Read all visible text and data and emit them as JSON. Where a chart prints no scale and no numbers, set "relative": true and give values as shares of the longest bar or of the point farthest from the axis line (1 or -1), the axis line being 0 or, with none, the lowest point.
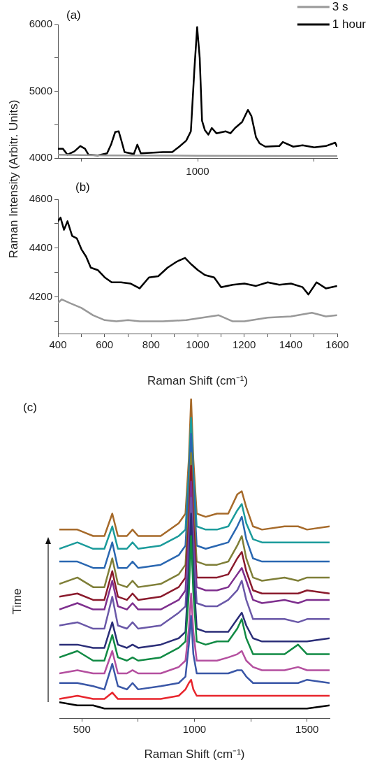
{
  "chart_data": [
    {
      "type": "line",
      "title": "(a)",
      "ylabel": "Raman Intensity (Arbitr. Units)",
      "annotations": [
        "1000"
      ],
      "tick_labels": "y",
      "xlim": [
        400,
        1600
      ],
      "xticks": [
        {
          "value": 500,
          "label": null
        },
        {
          "value": 1000,
          "label": null
        },
        {
          "value": 1500,
          "label": null
        }
      ],
      "ylim": [
        4000,
        6000
      ],
      "yticks": [
        4000,
        {
          "value": 4500,
          "label": null
        },
        5000,
        {
          "value": 5500,
          "label": null
        },
        6000
      ],
      "legend": "top right",
      "marker": "none",
      "series": [
        {
          "name": "3 s",
          "color": "#999999",
          "x": [
            400,
            600,
            1000,
            1600
          ],
          "values": [
            4050,
            4040,
            4035,
            4030
          ]
        },
        {
          "name": "1 hour",
          "color": "#000000",
          "x": [
            400,
            421,
            441,
            471,
            496,
            516,
            531,
            571,
            611,
            629,
            646,
            661,
            671,
            686,
            726,
            741,
            756,
            851,
            891,
            921,
            951,
            971,
            986,
            998,
            1009,
            1019,
            1031,
            1046,
            1061,
            1081,
            1121,
            1141,
            1161,
            1191,
            1216,
            1231,
            1251,
            1266,
            1291,
            1351,
            1366,
            1411,
            1451,
            1501,
            1551,
            1591,
            1599
          ],
          "values": [
            4140,
            4140,
            4050,
            4100,
            4180,
            4140,
            4050,
            4040,
            4070,
            4210,
            4390,
            4400,
            4280,
            4090,
            4060,
            4200,
            4070,
            4090,
            4090,
            4170,
            4260,
            4400,
            5320,
            5960,
            5500,
            4560,
            4420,
            4350,
            4450,
            4370,
            4400,
            4370,
            4450,
            4540,
            4720,
            4630,
            4310,
            4220,
            4170,
            4180,
            4240,
            4170,
            4190,
            4160,
            4180,
            4230,
            4170
          ]
        }
      ]
    },
    {
      "type": "line",
      "title": "(b)",
      "xlabel": "Raman Shift (cm⁻¹)",
      "xlim": [
        400,
        1600
      ],
      "xticks": [
        400,
        {
          "value": 500,
          "label": null
        },
        600,
        {
          "value": 700,
          "label": null
        },
        800,
        {
          "value": 900,
          "label": null
        },
        1000,
        {
          "value": 1100,
          "label": null
        },
        1200,
        {
          "value": 1300,
          "label": null
        },
        1400,
        {
          "value": 1500,
          "label": null
        },
        1600
      ],
      "ylim": [
        4050,
        4600
      ],
      "yticks": [
        {
          "value": 4100,
          "label": null
        },
        4200,
        {
          "value": 4300,
          "label": null
        },
        4400,
        {
          "value": 4500,
          "label": null
        },
        4600
      ],
      "marker": "none",
      "series": [
        {
          "color": "#999999",
          "x": [
            400,
            416,
            451,
            501,
            551,
            601,
            651,
            701,
            751,
            801,
            851,
            951,
            1091,
            1151,
            1201,
            1301,
            1401,
            1491,
            1551,
            1599
          ],
          "values": [
            4175,
            4190,
            4175,
            4155,
            4125,
            4105,
            4100,
            4105,
            4100,
            4100,
            4100,
            4105,
            4125,
            4100,
            4100,
            4115,
            4120,
            4135,
            4120,
            4125
          ]
        },
        {
          "color": "#000000",
          "x": [
            400,
            411,
            426,
            441,
            461,
            481,
            501,
            521,
            541,
            571,
            601,
            631,
            671,
            711,
            751,
            791,
            831,
            871,
            911,
            946,
            971,
            1001,
            1031,
            1071,
            1101,
            1151,
            1201,
            1251,
            1301,
            1351,
            1401,
            1451,
            1476,
            1511,
            1551,
            1599
          ],
          "values": [
            4510,
            4525,
            4475,
            4510,
            4450,
            4440,
            4395,
            4365,
            4320,
            4310,
            4280,
            4260,
            4260,
            4255,
            4235,
            4280,
            4285,
            4320,
            4345,
            4360,
            4335,
            4310,
            4290,
            4280,
            4240,
            4250,
            4255,
            4245,
            4260,
            4250,
            4255,
            4240,
            4210,
            4260,
            4235,
            4245
          ]
        }
      ]
    },
    {
      "type": "line",
      "title": "(c)",
      "xlabel": "Raman Shift (cm⁻¹)",
      "ylabel": "Time",
      "relative": true,
      "xlim": [
        400,
        1600
      ],
      "xticks": [
        500,
        {
          "value": 750,
          "label": null
        },
        1000,
        {
          "value": 1250,
          "label": null
        },
        1500
      ],
      "marker": "none",
      "x": [
        400,
        480,
        550,
        600,
        635,
        660,
        700,
        725,
        750,
        850,
        930,
        960,
        975,
        985,
        995,
        1010,
        1050,
        1100,
        1150,
        1190,
        1210,
        1230,
        1260,
        1300,
        1400,
        1460,
        1500,
        1600
      ],
      "series": [
        {
          "color": "#000000",
          "values": [
            0.05,
            0.04,
            0.04,
            0.03,
            0.03,
            0.03,
            0.03,
            0.03,
            0.03,
            0.03,
            0.03,
            0.03,
            0.03,
            0.03,
            0.03,
            0.03,
            0.03,
            0.03,
            0.03,
            0.03,
            0.03,
            0.03,
            0.03,
            0.03,
            0.03,
            0.03,
            0.03,
            0.04
          ]
        },
        {
          "color": "#e8262d",
          "values": [
            0.06,
            0.07,
            0.06,
            0.06,
            0.08,
            0.06,
            0.06,
            0.06,
            0.06,
            0.06,
            0.07,
            0.09,
            0.11,
            0.12,
            0.09,
            0.07,
            0.07,
            0.07,
            0.07,
            0.07,
            0.07,
            0.07,
            0.07,
            0.07,
            0.07,
            0.07,
            0.07,
            0.07
          ]
        },
        {
          "color": "#3a57a7",
          "values": [
            0.11,
            0.11,
            0.1,
            0.09,
            0.17,
            0.1,
            0.09,
            0.11,
            0.09,
            0.1,
            0.11,
            0.13,
            0.23,
            0.32,
            0.2,
            0.14,
            0.14,
            0.14,
            0.14,
            0.15,
            0.15,
            0.13,
            0.11,
            0.11,
            0.11,
            0.11,
            0.12,
            0.11
          ]
        },
        {
          "color": "#b44f9f",
          "values": [
            0.14,
            0.15,
            0.14,
            0.14,
            0.21,
            0.14,
            0.14,
            0.15,
            0.14,
            0.14,
            0.16,
            0.18,
            0.28,
            0.39,
            0.27,
            0.18,
            0.18,
            0.18,
            0.19,
            0.2,
            0.21,
            0.18,
            0.16,
            0.15,
            0.15,
            0.16,
            0.15,
            0.15
          ]
        },
        {
          "color": "#118a44",
          "values": [
            0.19,
            0.21,
            0.18,
            0.18,
            0.26,
            0.19,
            0.18,
            0.19,
            0.18,
            0.19,
            0.22,
            0.24,
            0.39,
            0.57,
            0.39,
            0.24,
            0.23,
            0.24,
            0.24,
            0.28,
            0.31,
            0.25,
            0.2,
            0.2,
            0.2,
            0.23,
            0.2,
            0.2
          ]
        },
        {
          "color": "#2b2e78",
          "values": [
            0.23,
            0.23,
            0.22,
            0.22,
            0.3,
            0.23,
            0.22,
            0.23,
            0.22,
            0.23,
            0.25,
            0.27,
            0.46,
            0.64,
            0.46,
            0.28,
            0.27,
            0.27,
            0.27,
            0.31,
            0.33,
            0.29,
            0.25,
            0.24,
            0.24,
            0.24,
            0.24,
            0.25
          ]
        },
        {
          "color": "#6a58a8",
          "values": [
            0.29,
            0.3,
            0.28,
            0.28,
            0.38,
            0.29,
            0.28,
            0.3,
            0.28,
            0.29,
            0.33,
            0.35,
            0.53,
            0.69,
            0.53,
            0.36,
            0.35,
            0.35,
            0.37,
            0.4,
            0.43,
            0.37,
            0.31,
            0.31,
            0.31,
            0.3,
            0.31,
            0.31
          ]
        },
        {
          "color": "#7e2f8e",
          "values": [
            0.34,
            0.36,
            0.34,
            0.34,
            0.43,
            0.35,
            0.34,
            0.36,
            0.34,
            0.34,
            0.37,
            0.4,
            0.57,
            0.74,
            0.57,
            0.41,
            0.4,
            0.4,
            0.41,
            0.45,
            0.47,
            0.43,
            0.37,
            0.36,
            0.37,
            0.36,
            0.37,
            0.37
          ]
        },
        {
          "color": "#8a1a2c",
          "values": [
            0.38,
            0.39,
            0.37,
            0.37,
            0.46,
            0.38,
            0.37,
            0.39,
            0.37,
            0.38,
            0.41,
            0.44,
            0.61,
            0.79,
            0.61,
            0.44,
            0.44,
            0.44,
            0.45,
            0.5,
            0.52,
            0.46,
            0.4,
            0.39,
            0.39,
            0.39,
            0.4,
            0.39
          ]
        },
        {
          "color": "#7f7f38",
          "values": [
            0.42,
            0.44,
            0.41,
            0.41,
            0.5,
            0.42,
            0.41,
            0.43,
            0.41,
            0.42,
            0.45,
            0.48,
            0.66,
            0.83,
            0.66,
            0.49,
            0.48,
            0.48,
            0.49,
            0.54,
            0.57,
            0.5,
            0.44,
            0.43,
            0.44,
            0.43,
            0.44,
            0.44
          ]
        },
        {
          "color": "#2a67b1",
          "values": [
            0.49,
            0.49,
            0.47,
            0.47,
            0.55,
            0.47,
            0.47,
            0.49,
            0.47,
            0.48,
            0.51,
            0.54,
            0.73,
            0.89,
            0.73,
            0.54,
            0.53,
            0.54,
            0.55,
            0.6,
            0.63,
            0.56,
            0.5,
            0.49,
            0.49,
            0.49,
            0.49,
            0.49
          ]
        },
        {
          "color": "#1b9b9b",
          "values": [
            0.53,
            0.55,
            0.53,
            0.53,
            0.6,
            0.53,
            0.53,
            0.55,
            0.53,
            0.54,
            0.57,
            0.59,
            0.77,
            0.94,
            0.77,
            0.6,
            0.59,
            0.59,
            0.6,
            0.65,
            0.67,
            0.61,
            0.56,
            0.55,
            0.55,
            0.55,
            0.55,
            0.55
          ]
        },
        {
          "color": "#a66a2a",
          "values": [
            0.59,
            0.59,
            0.57,
            0.57,
            0.64,
            0.57,
            0.57,
            0.59,
            0.57,
            0.57,
            0.61,
            0.64,
            0.81,
            1,
            0.81,
            0.64,
            0.63,
            0.64,
            0.64,
            0.7,
            0.71,
            0.66,
            0.6,
            0.59,
            0.6,
            0.6,
            0.59,
            0.6
          ]
        }
      ]
    }
  ]
}
